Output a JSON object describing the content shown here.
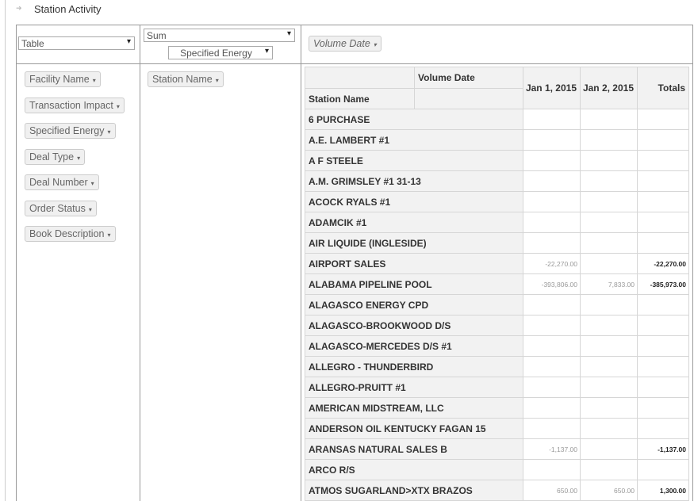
{
  "header": {
    "title": "Station Activity"
  },
  "controls": {
    "renderer": "Table",
    "aggregator": "Sum",
    "aggregator_field": "Specified Energy"
  },
  "column_fields": [
    "Volume Date"
  ],
  "unused_fields": [
    "Facility Name",
    "Transaction Impact",
    "Specified Energy",
    "Deal Type",
    "Deal Number",
    "Order Status",
    "Book Description"
  ],
  "row_fields": [
    "Station Name"
  ],
  "table": {
    "column_attr": "Volume Date",
    "row_attr": "Station Name",
    "columns": [
      "Jan 1, 2015",
      "Jan 2, 2015",
      "Totals"
    ],
    "rows": [
      [
        "6 PURCHASE",
        null,
        null,
        null
      ],
      [
        "A.E. LAMBERT #1",
        null,
        null,
        null
      ],
      [
        "A F STEELE",
        null,
        null,
        null
      ],
      [
        "A.M. GRIMSLEY #1 31-13",
        null,
        null,
        null
      ],
      [
        "ACOCK RYALS #1",
        null,
        null,
        null
      ],
      [
        "ADAMCIK #1",
        null,
        null,
        null
      ],
      [
        "AIR LIQUIDE (INGLESIDE)",
        null,
        null,
        null
      ],
      [
        "AIRPORT SALES",
        "-22,270.00",
        null,
        "-22,270.00"
      ],
      [
        "ALABAMA PIPELINE POOL",
        "-393,806.00",
        "7,833.00",
        "-385,973.00"
      ],
      [
        "ALAGASCO ENERGY CPD",
        null,
        null,
        null
      ],
      [
        "ALAGASCO-BROOKWOOD D/S",
        null,
        null,
        null
      ],
      [
        "ALAGASCO-MERCEDES D/S #1",
        null,
        null,
        null
      ],
      [
        "ALLEGRO - THUNDERBIRD",
        null,
        null,
        null
      ],
      [
        "ALLEGRO-PRUITT #1",
        null,
        null,
        null
      ],
      [
        "AMERICAN MIDSTREAM, LLC",
        null,
        null,
        null
      ],
      [
        "ANDERSON OIL KENTUCKY FAGAN 15",
        null,
        null,
        null
      ],
      [
        "ARANSAS NATURAL SALES B",
        "-1,137.00",
        null,
        "-1,137.00"
      ],
      [
        "ARCO R/S",
        null,
        null,
        null
      ],
      [
        "ATMOS SUGARLAND>XTX BRAZOS",
        "650.00",
        "650.00",
        "1,300.00"
      ]
    ]
  }
}
